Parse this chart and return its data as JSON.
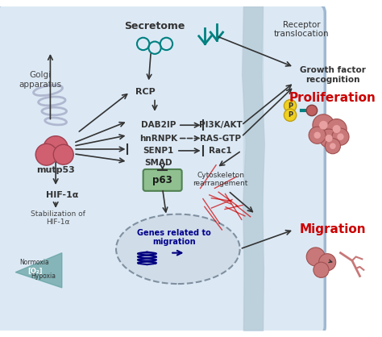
{
  "title": "",
  "bg_color": "#ffffff",
  "cell_bg": "#dce9f5",
  "cell_border": "#a0b8d0",
  "nucleus_bg": "#c8d8e8",
  "nucleus_border": "#8090a0",
  "labels": {
    "secretome": "Secretome",
    "receptor": "Receptor\ntranslocation",
    "growth_factor": "Growth factor\nrecognition",
    "rcp": "RCP",
    "dab2ip": "DAB2IP",
    "pi3k": "PI3K/AKT",
    "hnrnpk": "hnRNPK",
    "ras_gtp": "RAS-GTP",
    "senp1": "SENP1",
    "rac1": "Rac1",
    "smad": "SMAD",
    "p63": "p63",
    "mutp53": "mutp53",
    "hif1a": "HIF-1α",
    "stabilization": "Stabilization of\nHIF-1α",
    "normoxia": "Normoxia",
    "hypoxia": "Hypoxia",
    "o2": "[O₂]",
    "golgi": "Golgi\napparatus",
    "cytoskeleton": "Cytoskeleton\nrearrangement",
    "genes": "Genes related to\nmigration",
    "proliferation": "Proliferation",
    "migration": "Migration"
  },
  "colors": {
    "proliferation_text": "#cc0000",
    "migration_text": "#cc0000",
    "genes_text": "#00008b",
    "p63_bg": "#90c090",
    "p63_border": "#508050",
    "teal": "#008080",
    "pink_cell": "#e07070",
    "arrow": "#333333",
    "dashed_arrow": "#333333",
    "inhibit_arrow": "#333333",
    "triangle_teal": "#20a0a0",
    "golgi_color": "#b0b8d0",
    "mutp53_color": "#d06070",
    "nucleus_fill": "#c8d8e8",
    "dna_color": "#000080",
    "red_lines": "#cc0000",
    "o2_triangle": "#60a0a0"
  }
}
